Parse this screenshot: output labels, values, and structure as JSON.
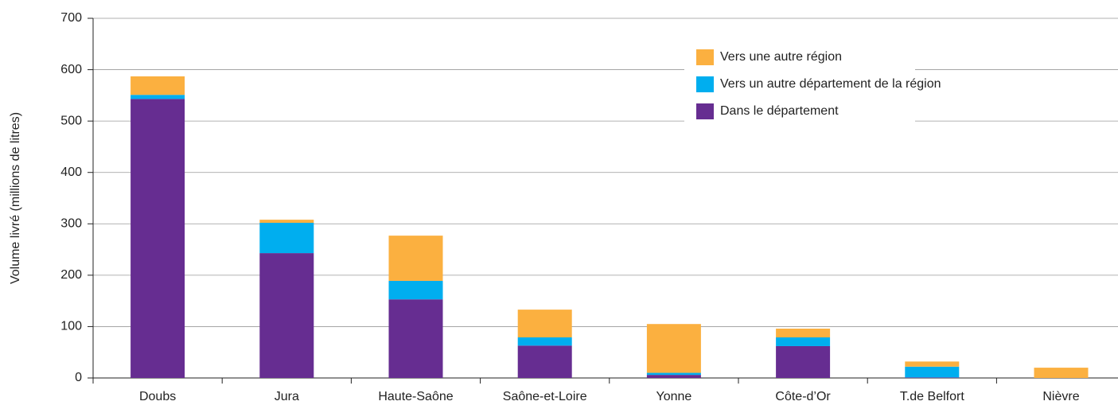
{
  "chart_data": {
    "type": "stacked_bar",
    "ylabel": "Volume livré (millions de litres)",
    "categories": [
      "Doubs",
      "Jura",
      "Haute-Saône",
      "Saône-et-Loire",
      "Yonne",
      "Côte-d’Or",
      "T.de Belfort",
      "Nièvre"
    ],
    "series": [
      {
        "name": "Dans le département",
        "color": "#662d91",
        "values": [
          543,
          243,
          153,
          63,
          6,
          62,
          1,
          0
        ]
      },
      {
        "name": "Vers un autre département de la région",
        "color": "#00aeef",
        "values": [
          8,
          59,
          36,
          16,
          4,
          17,
          21,
          0
        ]
      },
      {
        "name": "Vers une autre région",
        "color": "#fbb040",
        "values": [
          36,
          6,
          88,
          54,
          95,
          17,
          10,
          20
        ]
      }
    ],
    "ylim": [
      0,
      700
    ],
    "yticks": [
      0,
      100,
      200,
      300,
      400,
      500,
      600,
      700
    ],
    "grid": true,
    "legend": "upper right"
  }
}
